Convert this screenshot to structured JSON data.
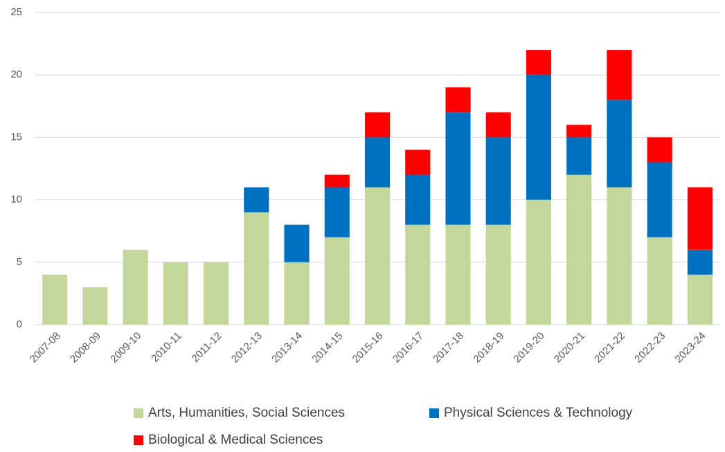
{
  "chart_data": {
    "type": "stacked_bar",
    "categories": [
      "2007-08",
      "2008-09",
      "2009-10",
      "2010-11",
      "2011-12",
      "2012-13",
      "2013-14",
      "2014-15",
      "2015-16",
      "2016-17",
      "2017-18",
      "2018-19",
      "2019-20",
      "2020-21",
      "2021-22",
      "2022-23",
      "2023-24"
    ],
    "series": [
      {
        "name": "Arts, Humanities, Social Sciences",
        "color": "#c4d79b",
        "values": [
          4,
          3,
          6,
          5,
          5,
          9,
          5,
          7,
          11,
          8,
          8,
          8,
          10,
          12,
          11,
          7,
          4
        ]
      },
      {
        "name": "Physical Sciences & Technology",
        "color": "#0070c0",
        "values": [
          0,
          0,
          0,
          0,
          0,
          2,
          3,
          4,
          4,
          4,
          9,
          7,
          10,
          3,
          7,
          6,
          2
        ]
      },
      {
        "name": "Biological & Medical Sciences",
        "color": "#ff0000",
        "values": [
          0,
          0,
          0,
          0,
          0,
          0,
          0,
          1,
          2,
          2,
          2,
          2,
          2,
          1,
          4,
          2,
          5
        ]
      }
    ],
    "ylim": [
      0,
      25
    ],
    "yticks": [
      0,
      5,
      10,
      15,
      20,
      25
    ],
    "grid": true,
    "legend": "bottom"
  }
}
